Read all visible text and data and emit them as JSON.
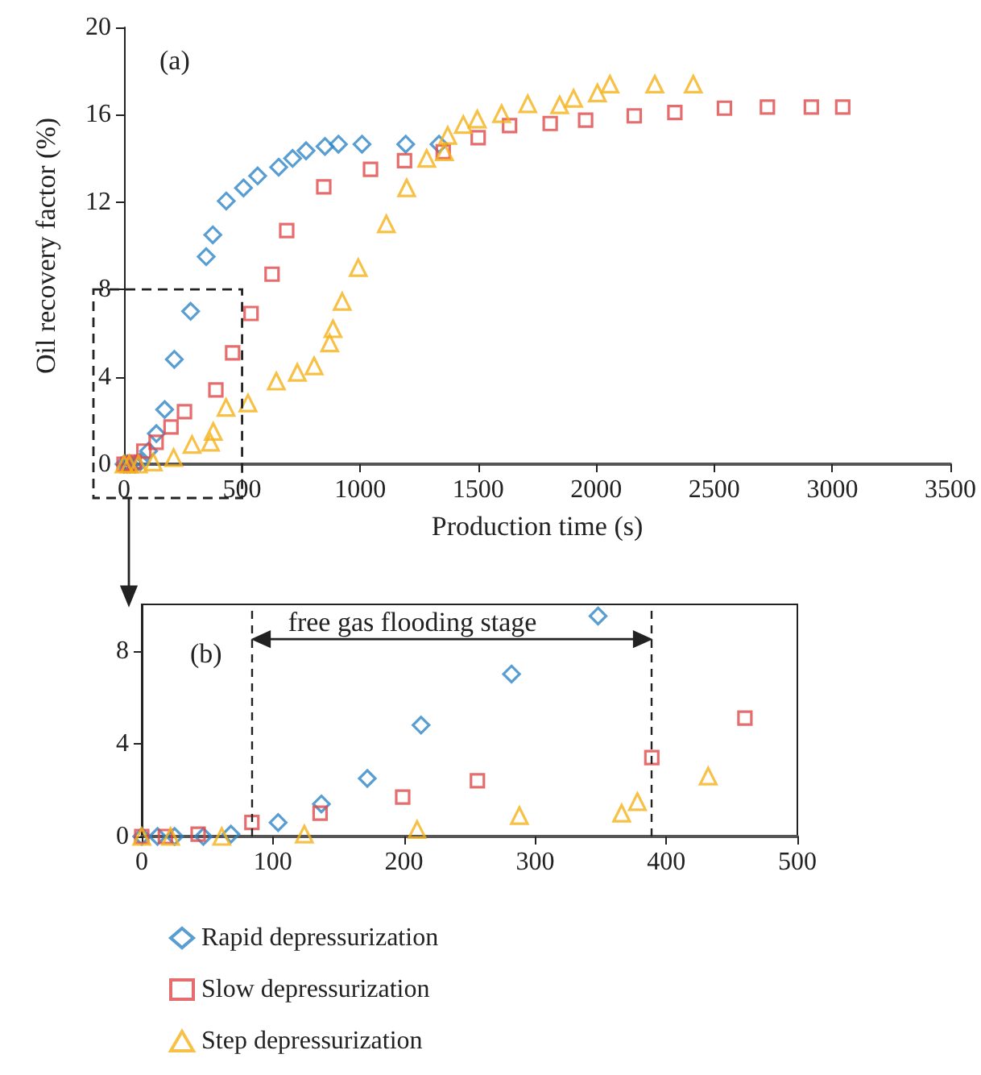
{
  "chart_data": [
    {
      "type": "scatter",
      "xlabel": "Production time (s)",
      "ylabel": "Oil recovery factor (%)",
      "annotations": [
        "(a)"
      ],
      "xlim": [
        0,
        3500
      ],
      "xticks": [
        0,
        500,
        1000,
        1500,
        2000,
        2500,
        3000,
        3500
      ],
      "ylim": [
        0,
        20
      ],
      "yticks": [
        0,
        4,
        8,
        12,
        16,
        20
      ],
      "grid": false,
      "legend": false,
      "series": [
        {
          "color": "#2e86c8",
          "marker": "diamond",
          "x": [
            0,
            12,
            25,
            47,
            68,
            104,
            137,
            172,
            213,
            282,
            348,
            376,
            433,
            506,
            566,
            655,
            714,
            771,
            851,
            908,
            1008,
            1193,
            1334
          ],
          "values": [
            0,
            0,
            0,
            0,
            0.1,
            0.6,
            1.4,
            2.5,
            4.8,
            7.0,
            9.5,
            10.5,
            12.05,
            12.65,
            13.2,
            13.6,
            14.0,
            14.35,
            14.55,
            14.65,
            14.65,
            14.65,
            14.65
          ]
        },
        {
          "color": "#e04848",
          "marker": "square",
          "x": [
            0,
            18,
            43,
            84,
            136,
            199,
            256,
            389,
            460,
            538,
            627,
            689,
            846,
            1044,
            1188,
            1352,
            1500,
            1633,
            1805,
            1955,
            2161,
            2333,
            2543,
            2725,
            2911,
            3044
          ],
          "values": [
            0,
            0,
            0.1,
            0.6,
            1.0,
            1.7,
            2.4,
            3.4,
            5.1,
            6.9,
            8.7,
            10.7,
            12.7,
            13.5,
            13.9,
            14.3,
            14.95,
            15.5,
            15.6,
            15.75,
            15.95,
            16.1,
            16.3,
            16.35,
            16.35,
            16.35
          ]
        },
        {
          "color": "#f5b21a",
          "marker": "triangle",
          "x": [
            0,
            22,
            61,
            124,
            210,
            288,
            366,
            378,
            432,
            525,
            645,
            734,
            805,
            871,
            885,
            924,
            992,
            1111,
            1197,
            1282,
            1357,
            1371,
            1437,
            1496,
            1599,
            1710,
            1845,
            1904,
            2005,
            2058,
            2248,
            2411
          ],
          "values": [
            0,
            0,
            0,
            0.1,
            0.3,
            0.9,
            1.0,
            1.5,
            2.6,
            2.8,
            3.8,
            4.2,
            4.5,
            5.55,
            6.2,
            7.45,
            9.0,
            11.0,
            12.65,
            14.0,
            14.3,
            15.05,
            15.55,
            15.8,
            16.05,
            16.5,
            16.45,
            16.75,
            17.0,
            17.4,
            17.4,
            17.4
          ]
        }
      ]
    },
    {
      "type": "scatter",
      "annotations": [
        "(b)",
        "free gas flooding stage"
      ],
      "xlim": [
        0,
        500
      ],
      "xticks": [
        0,
        100,
        200,
        300,
        400,
        500
      ],
      "ylim": [
        0,
        10
      ],
      "yticks": [
        0,
        4,
        8
      ],
      "grid": false,
      "legend": "bottom",
      "ref_lines": [
        {
          "axis": "x",
          "value": 84,
          "line_style": "dashed"
        },
        {
          "axis": "x",
          "value": 389,
          "line_style": "dashed"
        }
      ],
      "series": [
        {
          "name": "Rapid depressurization",
          "color": "#2e86c8",
          "marker": "diamond",
          "x": [
            0,
            12,
            25,
            47,
            68,
            104,
            137,
            172,
            213,
            282,
            348
          ],
          "values": [
            0,
            0,
            0,
            0,
            0.1,
            0.6,
            1.4,
            2.5,
            4.8,
            7.0,
            9.5
          ]
        },
        {
          "name": "Slow depressurization",
          "color": "#e04848",
          "marker": "square",
          "x": [
            0,
            18,
            43,
            84,
            136,
            199,
            256,
            389,
            460
          ],
          "values": [
            0,
            0,
            0.1,
            0.6,
            1.0,
            1.7,
            2.4,
            3.4,
            5.1
          ]
        },
        {
          "name": "Step depressurization",
          "color": "#f5b21a",
          "marker": "triangle",
          "x": [
            0,
            22,
            61,
            124,
            210,
            288,
            366,
            378,
            432
          ],
          "values": [
            0,
            0,
            0,
            0.1,
            0.3,
            0.9,
            1.0,
            1.5,
            2.6
          ]
        }
      ]
    }
  ]
}
